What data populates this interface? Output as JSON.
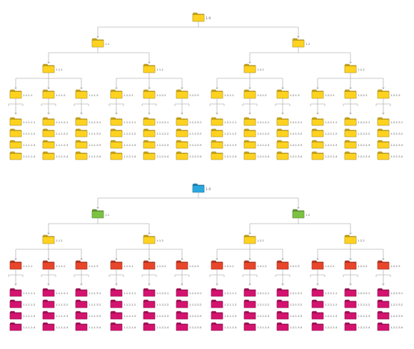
{
  "colors": {
    "connector": "#b7b7b7",
    "label": "#555555",
    "top_tree": {
      "all_levels": "#ffd21f"
    },
    "bottom_tree": {
      "level0": "#2aa7df",
      "level1": "#7cc242",
      "level2": "#ffd21f",
      "level3": "#e8452a",
      "level4": "#d4136f"
    }
  },
  "icon": "folder-icon",
  "trees": [
    {
      "name": "top",
      "root": "1.0",
      "level1": [
        "1.1",
        "1.2"
      ],
      "level2": [
        "1.1.1",
        "1.1.2",
        "1.2.1",
        "1.2.2"
      ],
      "level3": [
        "1.1.1.1",
        "1.1.1.2",
        "1.1.1.3",
        "1.1.2.1",
        "1.1.2.2",
        "1.1.2.3",
        "1.2.1.1",
        "1.2.1.2",
        "1.2.1.3",
        "1.2.2.1",
        "1.2.2.2",
        "1.2.2.3"
      ],
      "leaf_suffixes": [
        "1",
        "2",
        "3",
        "4"
      ]
    },
    {
      "name": "bottom",
      "root": "1.0",
      "level1": [
        "1.1",
        "1.2"
      ],
      "level2": [
        "1.1.1",
        "1.1.2",
        "1.2.1",
        "1.2.2"
      ],
      "level3": [
        "1.1.1.1",
        "1.1.1.2",
        "1.1.1.3",
        "1.1.2.1",
        "1.1.2.2",
        "1.1.2.3",
        "1.2.1.1",
        "1.2.1.2",
        "1.2.1.3",
        "1.2.2.1",
        "1.2.2.2",
        "1.2.2.3"
      ],
      "leaf_suffixes": [
        "1",
        "2",
        "3",
        "4"
      ]
    }
  ]
}
